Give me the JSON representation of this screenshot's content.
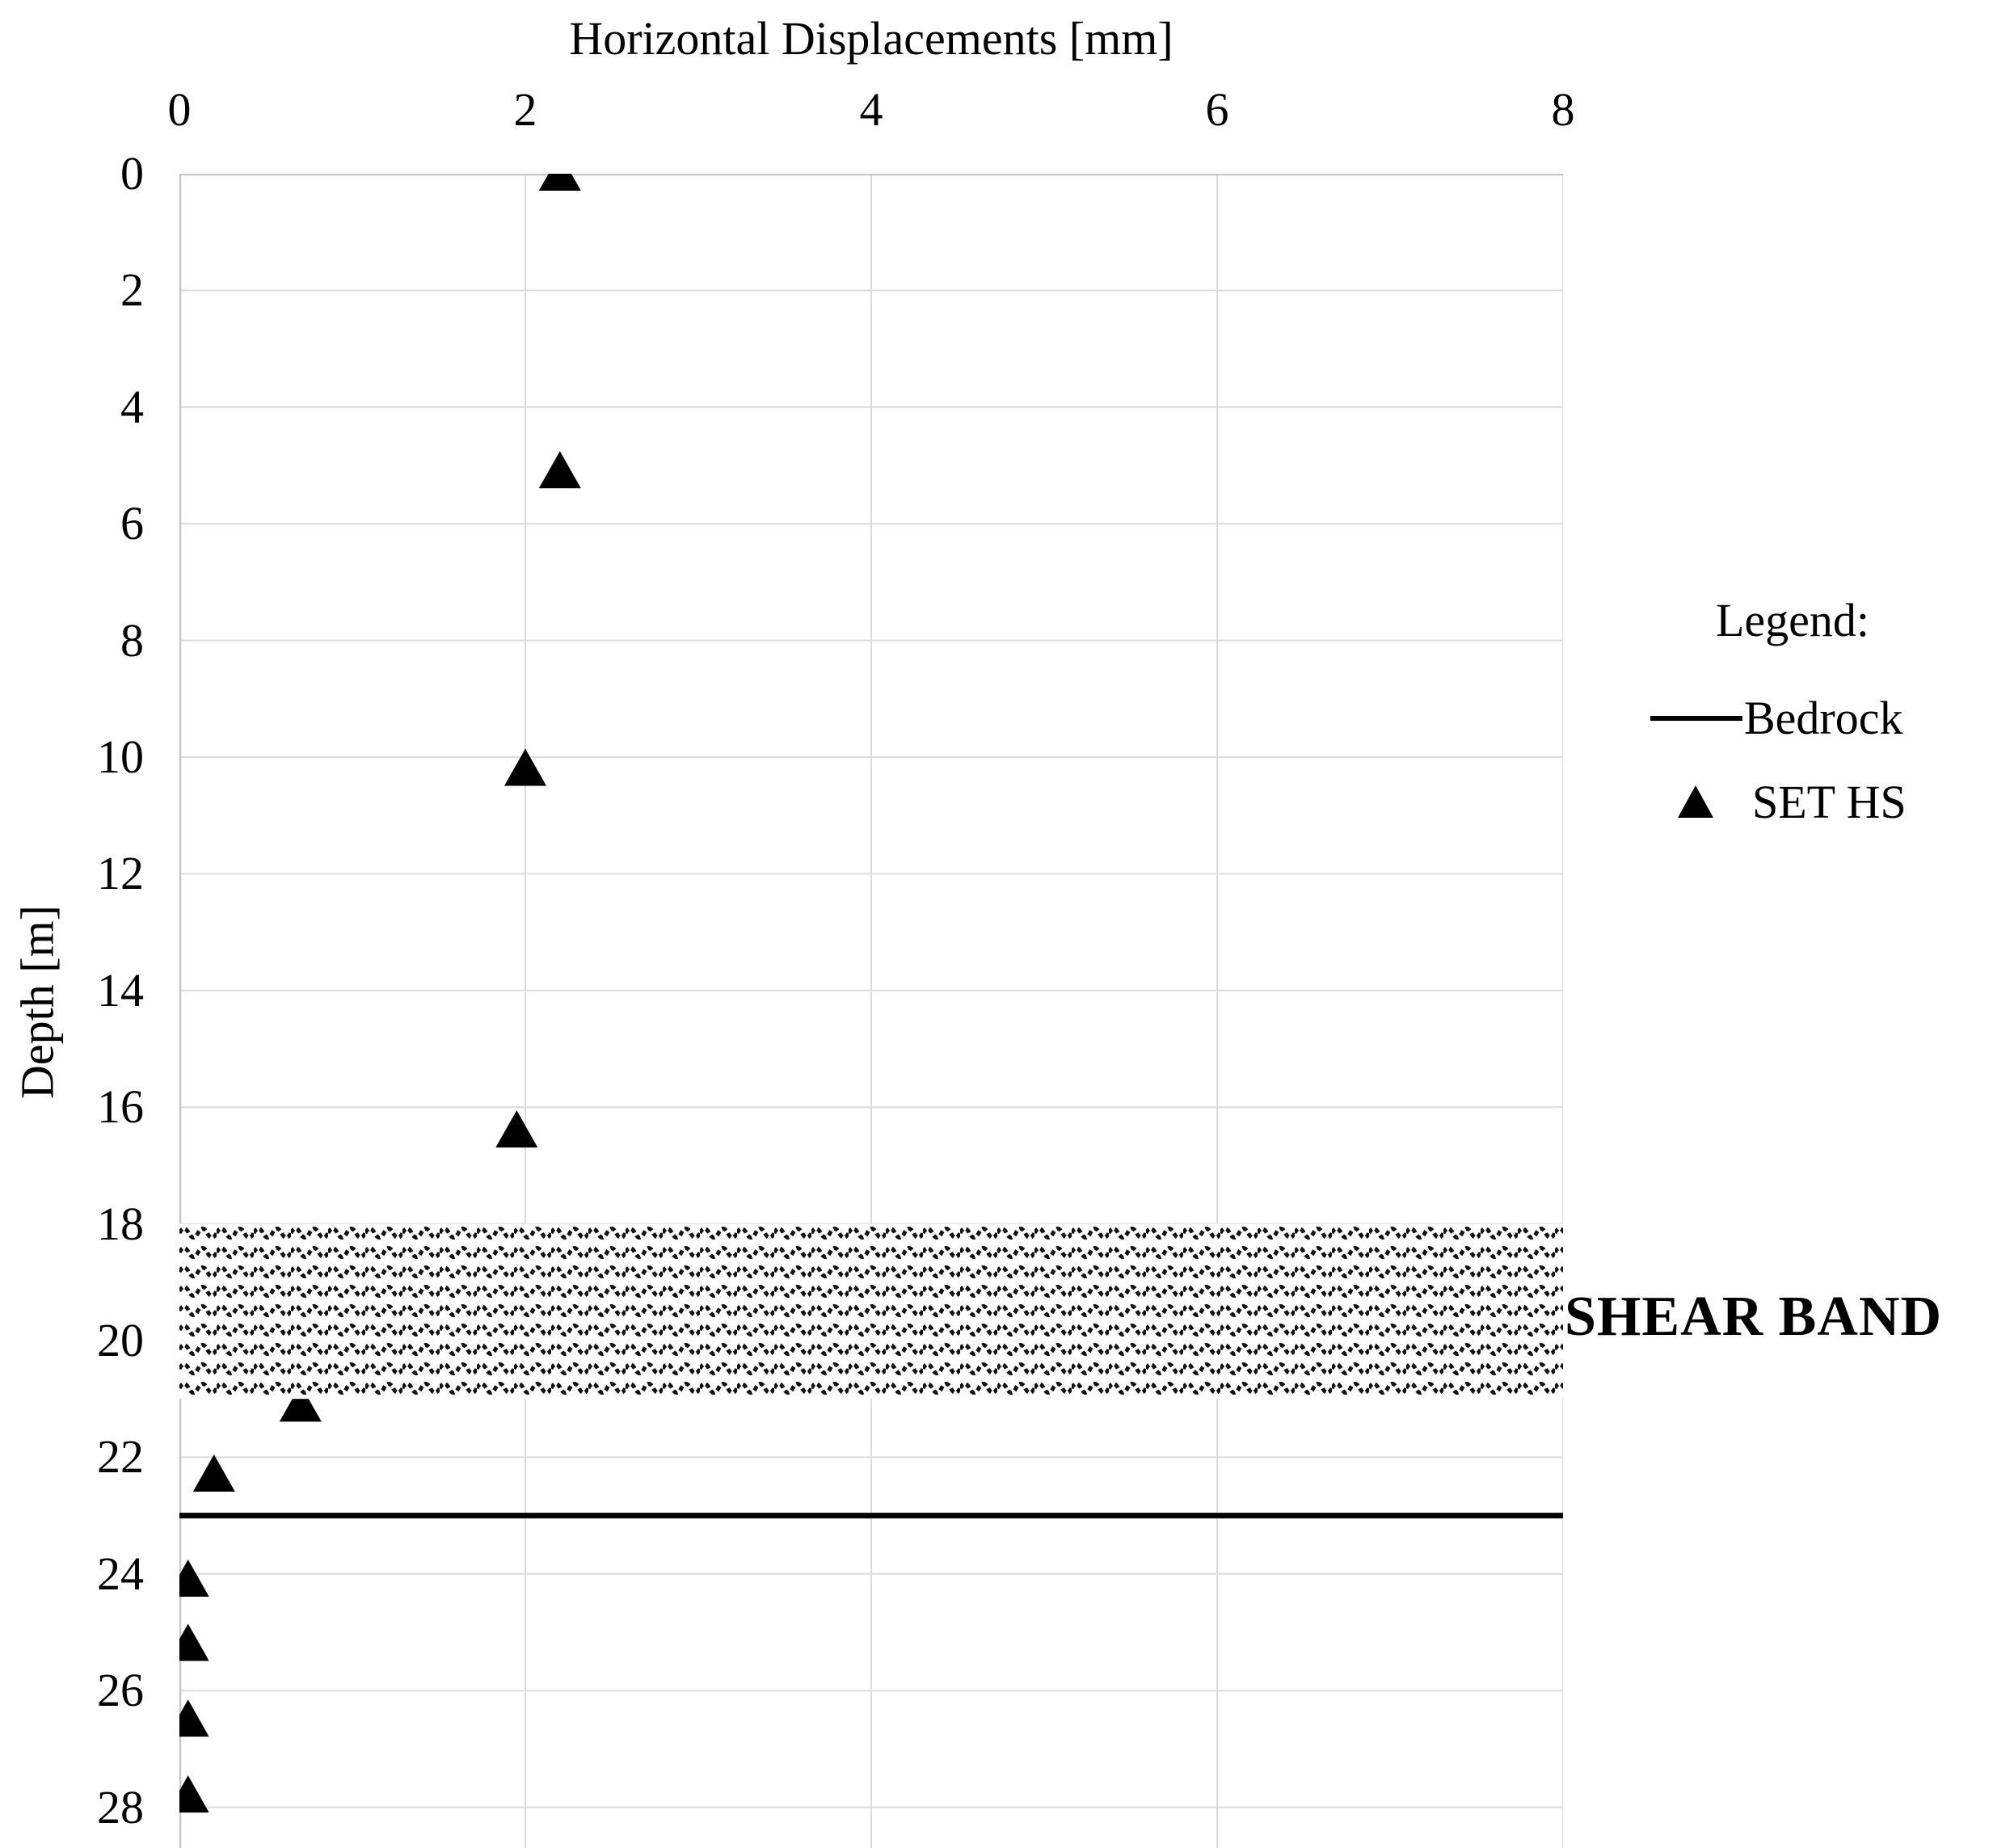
{
  "chart_data": {
    "type": "scatter",
    "title": "Horizontal Displacements [mm]",
    "xlabel": "Horizontal Displacements [mm]",
    "ylabel": "Depth [m]",
    "x_axis": {
      "label": "Horizontal Displacements [mm]",
      "side": "top",
      "ticks": [
        0,
        2,
        4,
        6,
        8
      ],
      "range": [
        0,
        8
      ],
      "unit": "mm"
    },
    "y_axis": {
      "label": "Depth [m]",
      "ticks": [
        0,
        2,
        4,
        6,
        8,
        10,
        12,
        14,
        16,
        18,
        20,
        22,
        24,
        26,
        28
      ],
      "range": [
        0,
        28.7
      ],
      "inverted": true,
      "unit": "m"
    },
    "grid": true,
    "series": [
      {
        "name": "SET HS",
        "marker": "triangle",
        "color": "#000000",
        "points": [
          {
            "x": 2.2,
            "depth": 0
          },
          {
            "x": 2.2,
            "depth": 5.1
          },
          {
            "x": 2.0,
            "depth": 10.2
          },
          {
            "x": 1.95,
            "depth": 16.4
          },
          {
            "x": 0.7,
            "depth": 21.1
          },
          {
            "x": 0.2,
            "depth": 22.3
          },
          {
            "x": 0.05,
            "depth": 24.1
          },
          {
            "x": 0.05,
            "depth": 25.2
          },
          {
            "x": 0.05,
            "depth": 26.5
          },
          {
            "x": 0.05,
            "depth": 27.8
          }
        ]
      }
    ],
    "bedrock": {
      "label": "Bedrock",
      "depth": 23,
      "line_color": "#000000"
    },
    "shear_band": {
      "label": "SHEAR BAND",
      "top_depth": 18,
      "bottom_depth": 21,
      "pattern": "dotted-wave-hatch"
    },
    "legend": {
      "title": "Legend:",
      "position": "right",
      "entries": [
        {
          "label": "Bedrock",
          "symbol": "line"
        },
        {
          "label": "SET HS",
          "symbol": "triangle"
        }
      ]
    },
    "colors": {
      "data": "#000000",
      "gridline": "#dcdcdc",
      "axis": "#c6c6c6",
      "background": "#ffffff"
    }
  }
}
